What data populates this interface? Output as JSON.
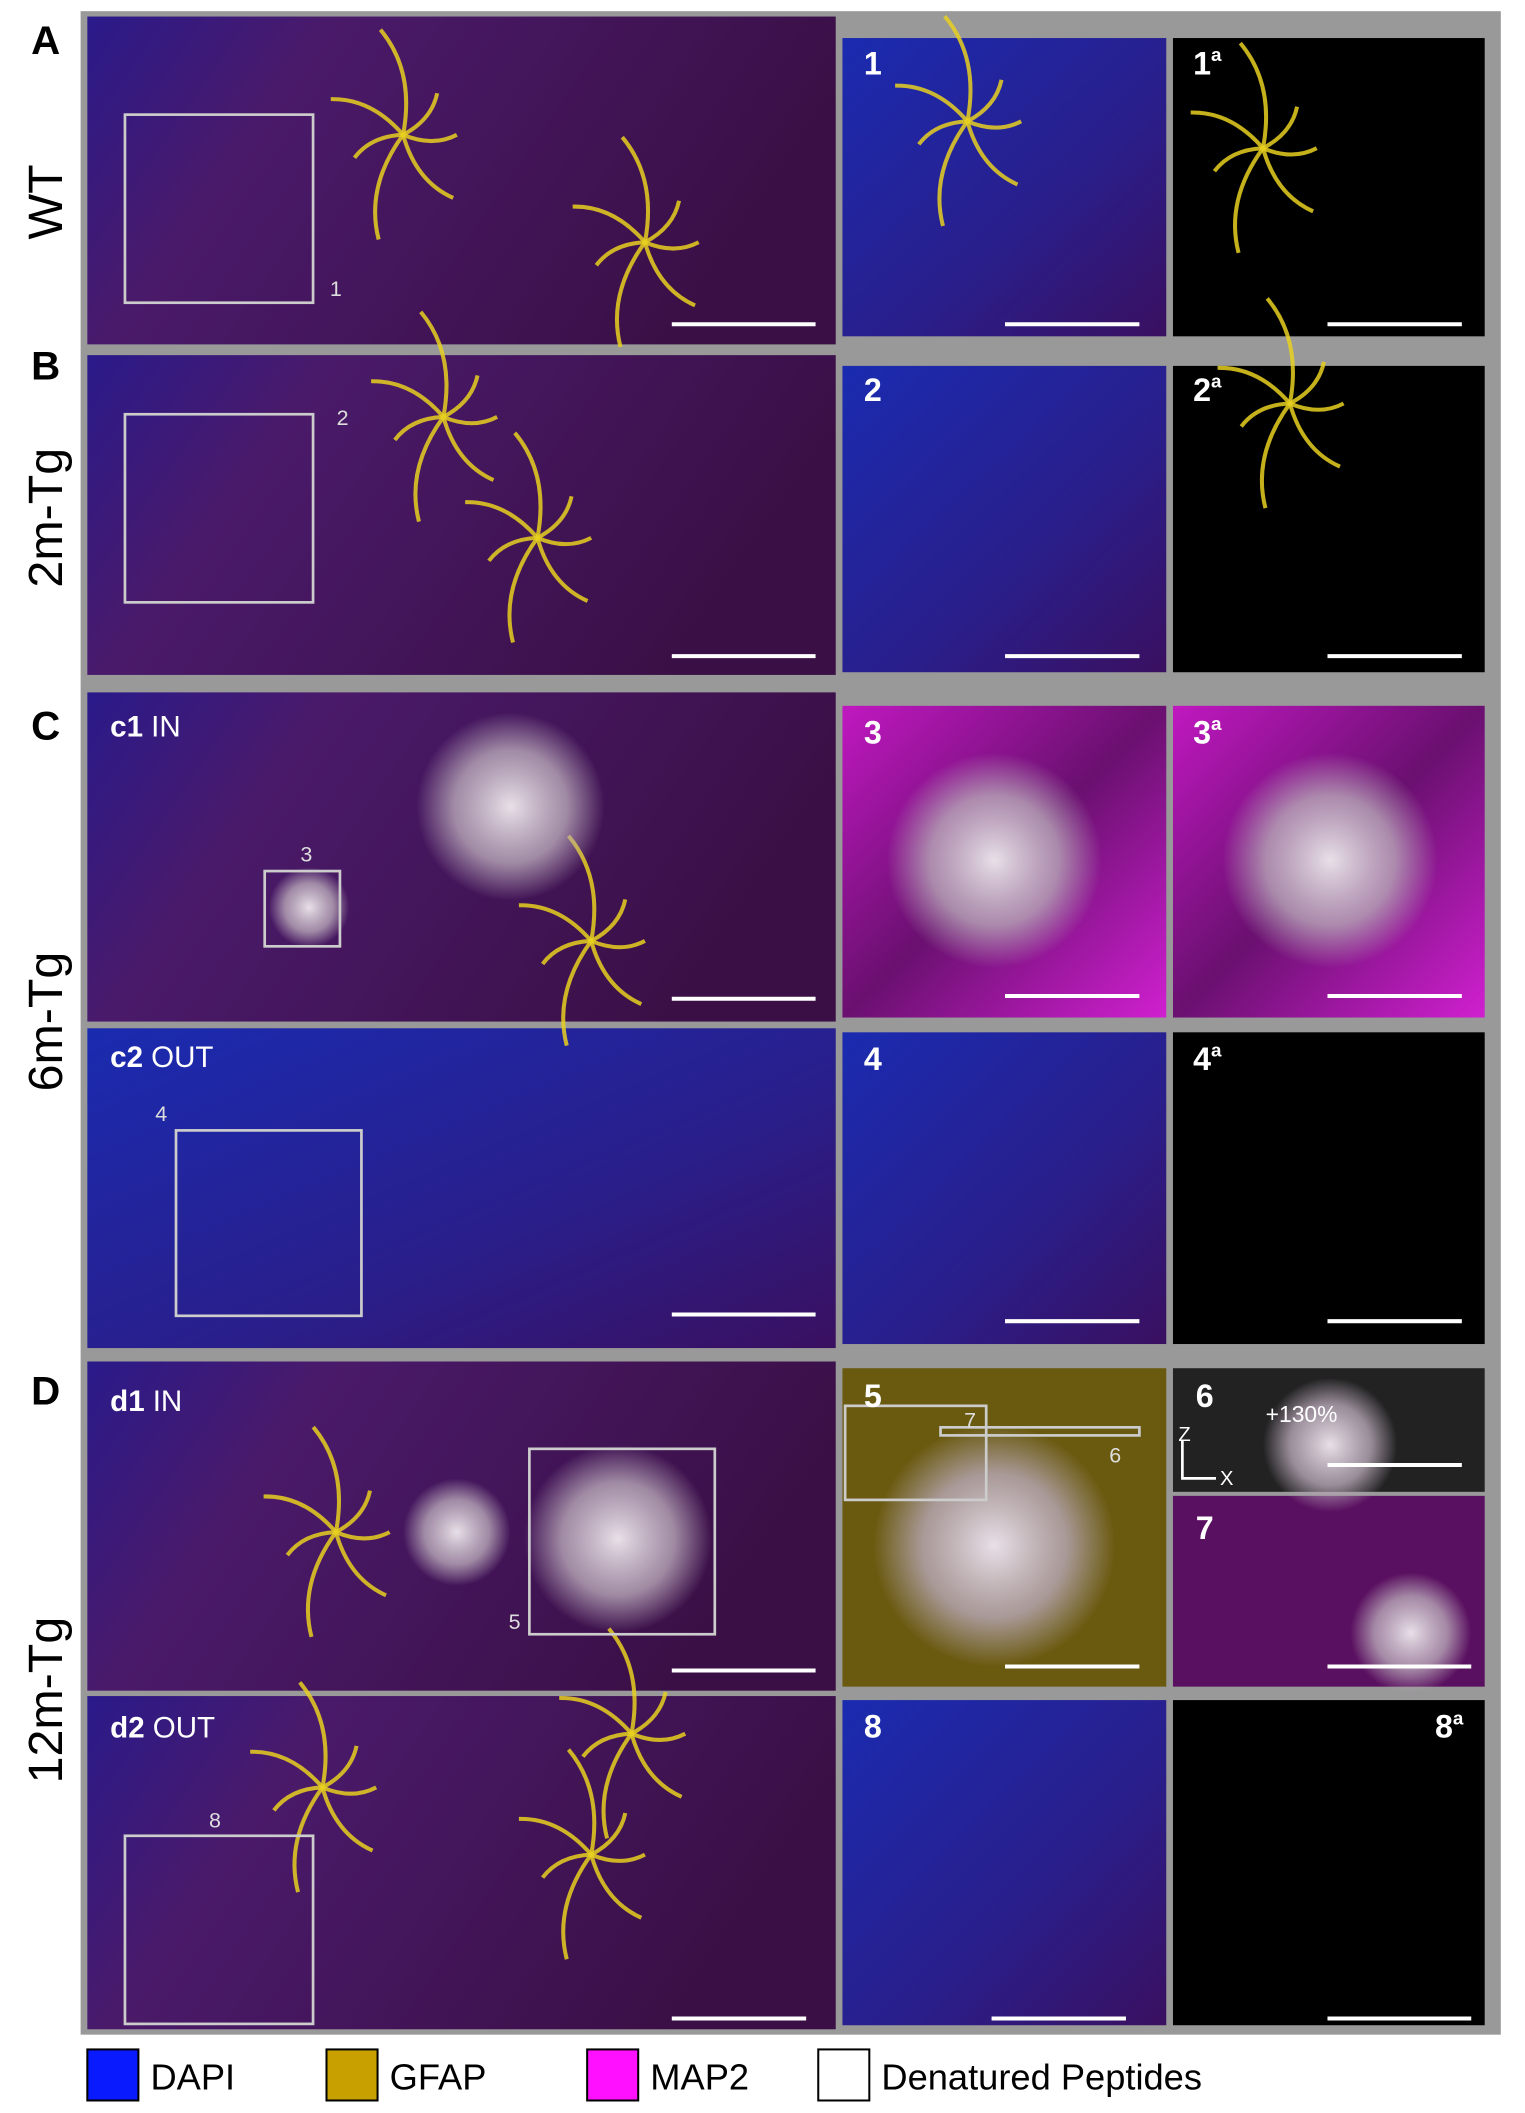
{
  "rows": [
    {
      "letter": "A",
      "condition": "WT"
    },
    {
      "letter": "B",
      "condition": "2m-Tg"
    },
    {
      "letter": "C",
      "condition": "6m-Tg"
    },
    {
      "letter": "D",
      "condition": "12m-Tg"
    }
  ],
  "subpanels": [
    {
      "id": "c1",
      "region": "IN"
    },
    {
      "id": "c2",
      "region": "OUT"
    },
    {
      "id": "d1",
      "region": "IN"
    },
    {
      "id": "d2",
      "region": "OUT"
    }
  ],
  "insets": [
    "1",
    "2",
    "3",
    "4",
    "5",
    "6",
    "7",
    "8"
  ],
  "superscript": "a",
  "annotation": "+130%",
  "axis_z": "Z",
  "axis_x": "X",
  "legend": [
    "DAPI",
    "GFAP",
    "MAP2",
    "Denatured Peptides"
  ]
}
